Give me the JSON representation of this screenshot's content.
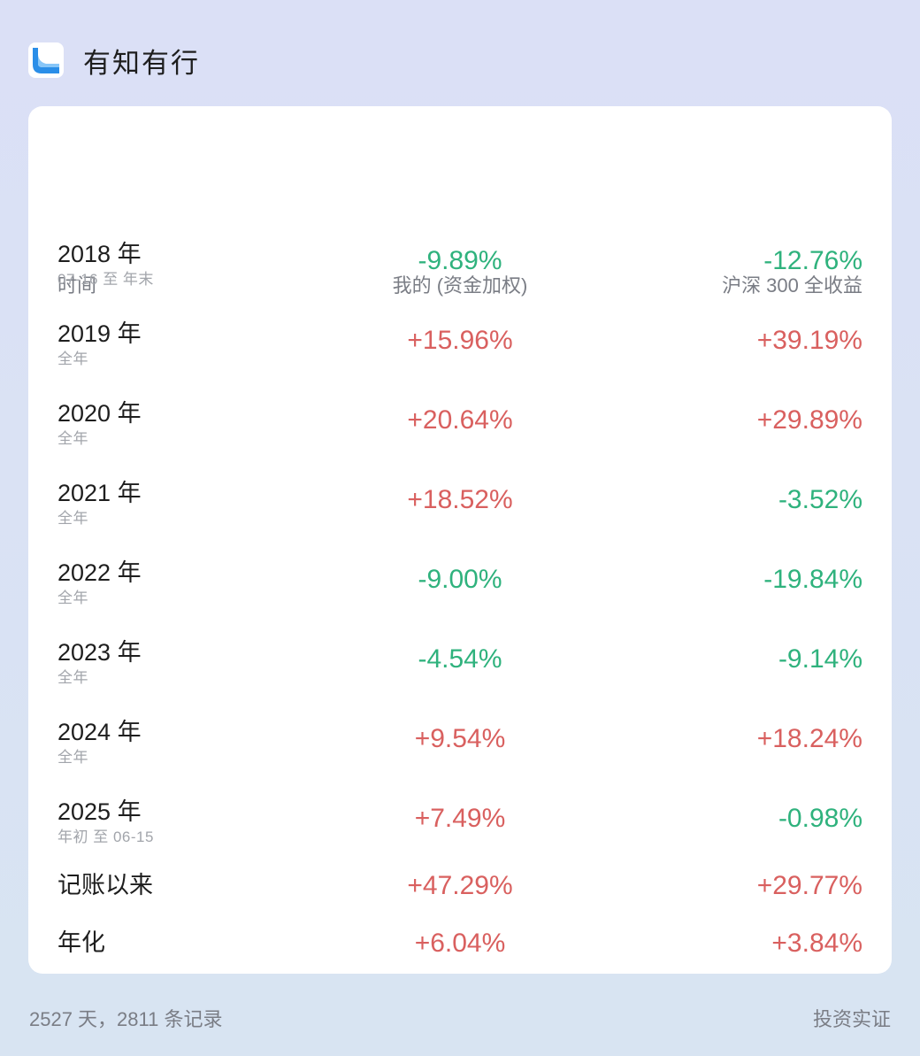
{
  "app": {
    "title": "有知有行"
  },
  "table": {
    "headers": {
      "period": "时间",
      "mine": "我的 (资金加权)",
      "benchmark": "沪深 300 全收益"
    },
    "rows": [
      {
        "year": "2018 年",
        "range": "07-16 至 年末",
        "mine": "-9.89%",
        "benchmark": "-12.76%"
      },
      {
        "year": "2019 年",
        "range": "全年",
        "mine": "+15.96%",
        "benchmark": "+39.19%"
      },
      {
        "year": "2020 年",
        "range": "全年",
        "mine": "+20.64%",
        "benchmark": "+29.89%"
      },
      {
        "year": "2021 年",
        "range": "全年",
        "mine": "+18.52%",
        "benchmark": "-3.52%"
      },
      {
        "year": "2022 年",
        "range": "全年",
        "mine": "-9.00%",
        "benchmark": "-19.84%"
      },
      {
        "year": "2023 年",
        "range": "全年",
        "mine": "-4.54%",
        "benchmark": "-9.14%"
      },
      {
        "year": "2024 年",
        "range": "全年",
        "mine": "+9.54%",
        "benchmark": "+18.24%"
      },
      {
        "year": "2025 年",
        "range": "年初 至 06-15",
        "mine": "+7.49%",
        "benchmark": "-0.98%"
      }
    ],
    "summary": [
      {
        "label": "记账以来",
        "mine": "+47.29%",
        "benchmark": "+29.77%"
      },
      {
        "label": "年化",
        "mine": "+6.04%",
        "benchmark": "+3.84%"
      }
    ]
  },
  "footer": {
    "stats": "2527 天，2811 条记录",
    "badge": "投资实证"
  },
  "colors": {
    "gain": "#d9605f",
    "loss": "#2fb27d",
    "logo": "#2a8ee8"
  }
}
